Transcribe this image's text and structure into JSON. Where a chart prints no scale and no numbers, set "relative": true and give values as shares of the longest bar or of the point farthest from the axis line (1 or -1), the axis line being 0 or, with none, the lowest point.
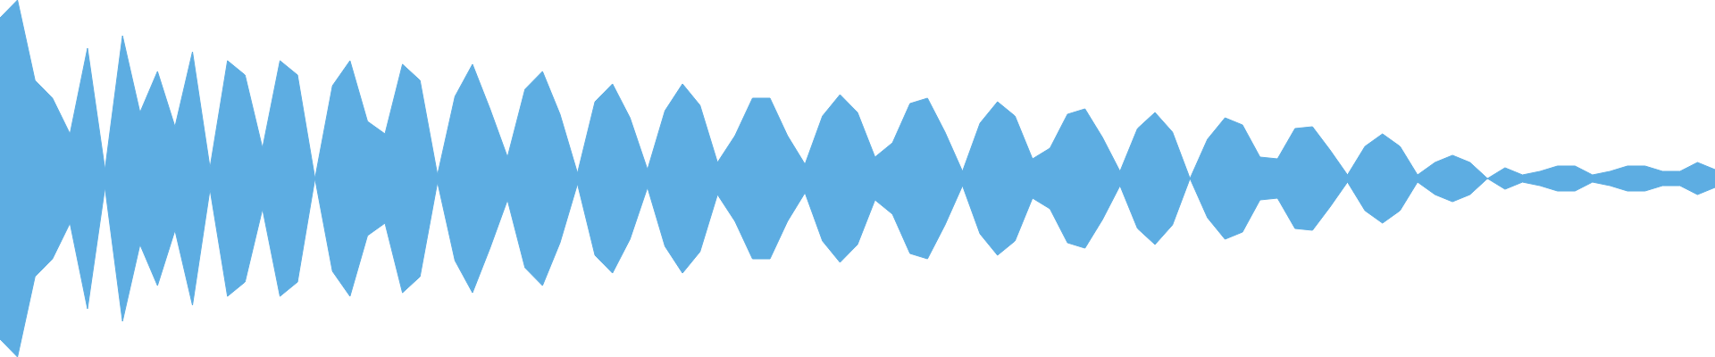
{
  "chart_data": {
    "type": "area",
    "relative": true,
    "marker": "none",
    "categories": [
      null,
      null,
      null,
      null,
      null,
      null,
      null,
      null,
      null,
      null,
      null,
      null,
      null,
      null,
      null,
      null,
      null,
      null,
      null,
      null,
      null,
      null,
      null,
      null,
      null,
      null,
      null,
      null,
      null,
      null,
      null,
      null,
      null,
      null,
      null,
      null,
      null,
      null,
      null,
      null,
      null,
      null,
      null,
      null,
      null,
      null,
      null,
      null,
      null,
      null,
      null,
      null,
      null,
      null,
      null,
      null,
      null,
      null,
      null,
      null,
      null,
      null,
      null,
      null,
      null,
      null,
      null,
      null,
      null,
      null,
      null,
      null,
      null,
      null,
      null,
      null,
      null,
      null,
      null,
      null,
      null,
      null,
      null,
      null,
      null,
      null,
      null,
      null,
      null,
      null,
      null,
      null,
      null,
      null,
      null,
      null,
      null,
      null,
      null
    ],
    "series": [
      {
        "color": "#5dade2",
        "values": [
          0.9,
          1,
          0.55,
          0.45,
          0.25,
          0.73,
          0.05,
          0.8,
          0.37,
          0.6,
          0.29,
          0.71,
          0.06,
          0.66,
          0.58,
          0.17,
          0.66,
          0.58,
          0,
          0.52,
          0.66,
          0.32,
          0.25,
          0.64,
          0.55,
          0.02,
          0.46,
          0.64,
          0.39,
          0.12,
          0.5,
          0.6,
          0.36,
          0.03,
          0.43,
          0.53,
          0.34,
          0.05,
          0.38,
          0.53,
          0.41,
          0.09,
          0.24,
          0.45,
          0.45,
          0.24,
          0.08,
          0.35,
          0.47,
          0.37,
          0.12,
          0.2,
          0.42,
          0.45,
          0.26,
          0.04,
          0.31,
          0.43,
          0.35,
          0.11,
          0.17,
          0.36,
          0.39,
          0.23,
          0.04,
          0.28,
          0.37,
          0.26,
          0,
          0.22,
          0.34,
          0.3,
          0.12,
          0.11,
          0.28,
          0.29,
          0.16,
          0.02,
          0.18,
          0.25,
          0.18,
          0.02,
          0.09,
          0.13,
          0.09,
          0,
          0.06,
          0.02,
          0.04,
          0.07,
          0.07,
          0.02,
          0.04,
          0.07,
          0.07,
          0.04,
          0.04,
          0.09,
          0.05
        ]
      },
      {
        "color": "#5dade2",
        "values": [
          -0.9,
          -1,
          -0.55,
          -0.45,
          -0.25,
          -0.73,
          -0.05,
          -0.8,
          -0.37,
          -0.6,
          -0.29,
          -0.71,
          -0.06,
          -0.66,
          -0.58,
          -0.17,
          -0.66,
          -0.58,
          0,
          -0.52,
          -0.66,
          -0.32,
          -0.25,
          -0.64,
          -0.55,
          -0.02,
          -0.46,
          -0.64,
          -0.39,
          -0.12,
          -0.5,
          -0.6,
          -0.36,
          -0.03,
          -0.43,
          -0.53,
          -0.34,
          -0.05,
          -0.38,
          -0.53,
          -0.41,
          -0.09,
          -0.24,
          -0.45,
          -0.45,
          -0.24,
          -0.08,
          -0.35,
          -0.47,
          -0.37,
          -0.12,
          -0.2,
          -0.42,
          -0.45,
          -0.26,
          -0.04,
          -0.31,
          -0.43,
          -0.35,
          -0.11,
          -0.17,
          -0.36,
          -0.39,
          -0.23,
          -0.04,
          -0.28,
          -0.37,
          -0.26,
          0,
          -0.22,
          -0.34,
          -0.3,
          -0.12,
          -0.11,
          -0.28,
          -0.29,
          -0.16,
          -0.02,
          -0.18,
          -0.25,
          -0.18,
          -0.02,
          -0.09,
          -0.13,
          -0.09,
          0,
          -0.06,
          -0.02,
          -0.04,
          -0.07,
          -0.07,
          -0.02,
          -0.04,
          -0.07,
          -0.07,
          -0.04,
          -0.04,
          -0.09,
          -0.05
        ]
      }
    ]
  }
}
